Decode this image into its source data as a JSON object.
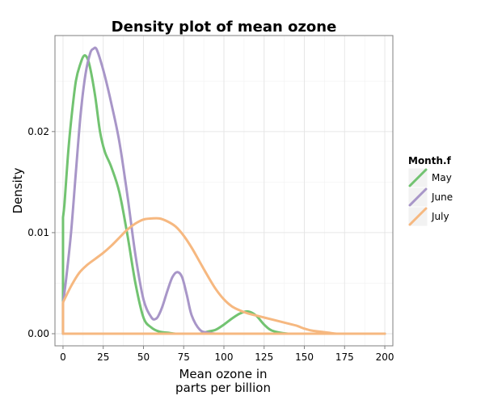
{
  "chart_data": {
    "type": "line",
    "title": "Density plot of mean ozone",
    "xlabel_lines": [
      "Mean ozone in",
      "parts per billion"
    ],
    "ylabel": "Density",
    "xlim": [
      -5,
      205
    ],
    "ylim": [
      -0.0012,
      0.0295
    ],
    "x_ticks": [
      0,
      25,
      50,
      75,
      100,
      125,
      150,
      175,
      200
    ],
    "x_tick_labels": [
      "0",
      "25",
      "50",
      "75",
      "100",
      "125",
      "150",
      "175",
      "200"
    ],
    "y_ticks": [
      0.0,
      0.01,
      0.02
    ],
    "y_tick_labels": [
      "0.00",
      "0.01",
      "0.02"
    ],
    "grid": true,
    "legend": {
      "title": "Month.f",
      "position": "right"
    },
    "series": [
      {
        "name": "May",
        "color": "#72c371",
        "x": [
          0,
          1,
          3,
          5,
          8,
          11,
          13,
          15,
          17,
          20,
          23,
          26,
          30,
          35,
          40,
          45,
          50,
          55,
          60,
          65,
          70,
          75,
          80,
          85,
          90,
          95,
          100,
          105,
          110,
          115,
          120,
          125,
          130,
          140,
          150,
          175,
          200
        ],
        "y": [
          0.0115,
          0.013,
          0.0175,
          0.021,
          0.025,
          0.0268,
          0.0275,
          0.0273,
          0.0262,
          0.0235,
          0.02,
          0.018,
          0.0165,
          0.014,
          0.0098,
          0.005,
          0.0016,
          0.0006,
          0.0002,
          0.0001,
          0.0,
          0.0,
          0.0,
          0.0,
          0.0002,
          0.0004,
          0.0009,
          0.0015,
          0.002,
          0.0022,
          0.0018,
          0.0009,
          0.0003,
          0.0,
          0.0,
          0.0,
          0.0
        ]
      },
      {
        "name": "June",
        "color": "#a896c8",
        "x": [
          0,
          2,
          5,
          8,
          11,
          14,
          17,
          19,
          20,
          21,
          23,
          26,
          30,
          35,
          40,
          45,
          50,
          55,
          58,
          60,
          62,
          65,
          68,
          71,
          74,
          77,
          80,
          85,
          90,
          95,
          100,
          110,
          125,
          150,
          175,
          200
        ],
        "y": [
          0.003,
          0.0055,
          0.01,
          0.016,
          0.0218,
          0.0257,
          0.0278,
          0.0282,
          0.0283,
          0.0281,
          0.0272,
          0.0255,
          0.0228,
          0.019,
          0.0137,
          0.0078,
          0.0034,
          0.0016,
          0.0015,
          0.002,
          0.0028,
          0.0043,
          0.0056,
          0.0061,
          0.0056,
          0.0038,
          0.0018,
          0.0004,
          0.0001,
          0.0,
          0.0,
          0.0,
          0.0,
          0.0,
          0.0,
          0.0
        ]
      },
      {
        "name": "July",
        "color": "#f6b880",
        "x": [
          0,
          5,
          10,
          15,
          20,
          25,
          30,
          35,
          40,
          45,
          50,
          55,
          60,
          65,
          70,
          75,
          80,
          85,
          90,
          95,
          100,
          105,
          110,
          115,
          120,
          125,
          130,
          135,
          140,
          145,
          150,
          155,
          160,
          165,
          170,
          175,
          180,
          190,
          200
        ],
        "y": [
          0.0031,
          0.0047,
          0.006,
          0.0068,
          0.0074,
          0.008,
          0.0087,
          0.0095,
          0.0103,
          0.0109,
          0.0113,
          0.0114,
          0.0114,
          0.0111,
          0.0106,
          0.0097,
          0.0085,
          0.0071,
          0.0057,
          0.0044,
          0.0034,
          0.0027,
          0.0023,
          0.002,
          0.0018,
          0.0016,
          0.0014,
          0.0012,
          0.001,
          0.0008,
          0.0005,
          0.0003,
          0.0002,
          0.0001,
          0.0,
          0.0,
          0.0,
          0.0,
          0.0
        ]
      }
    ]
  }
}
